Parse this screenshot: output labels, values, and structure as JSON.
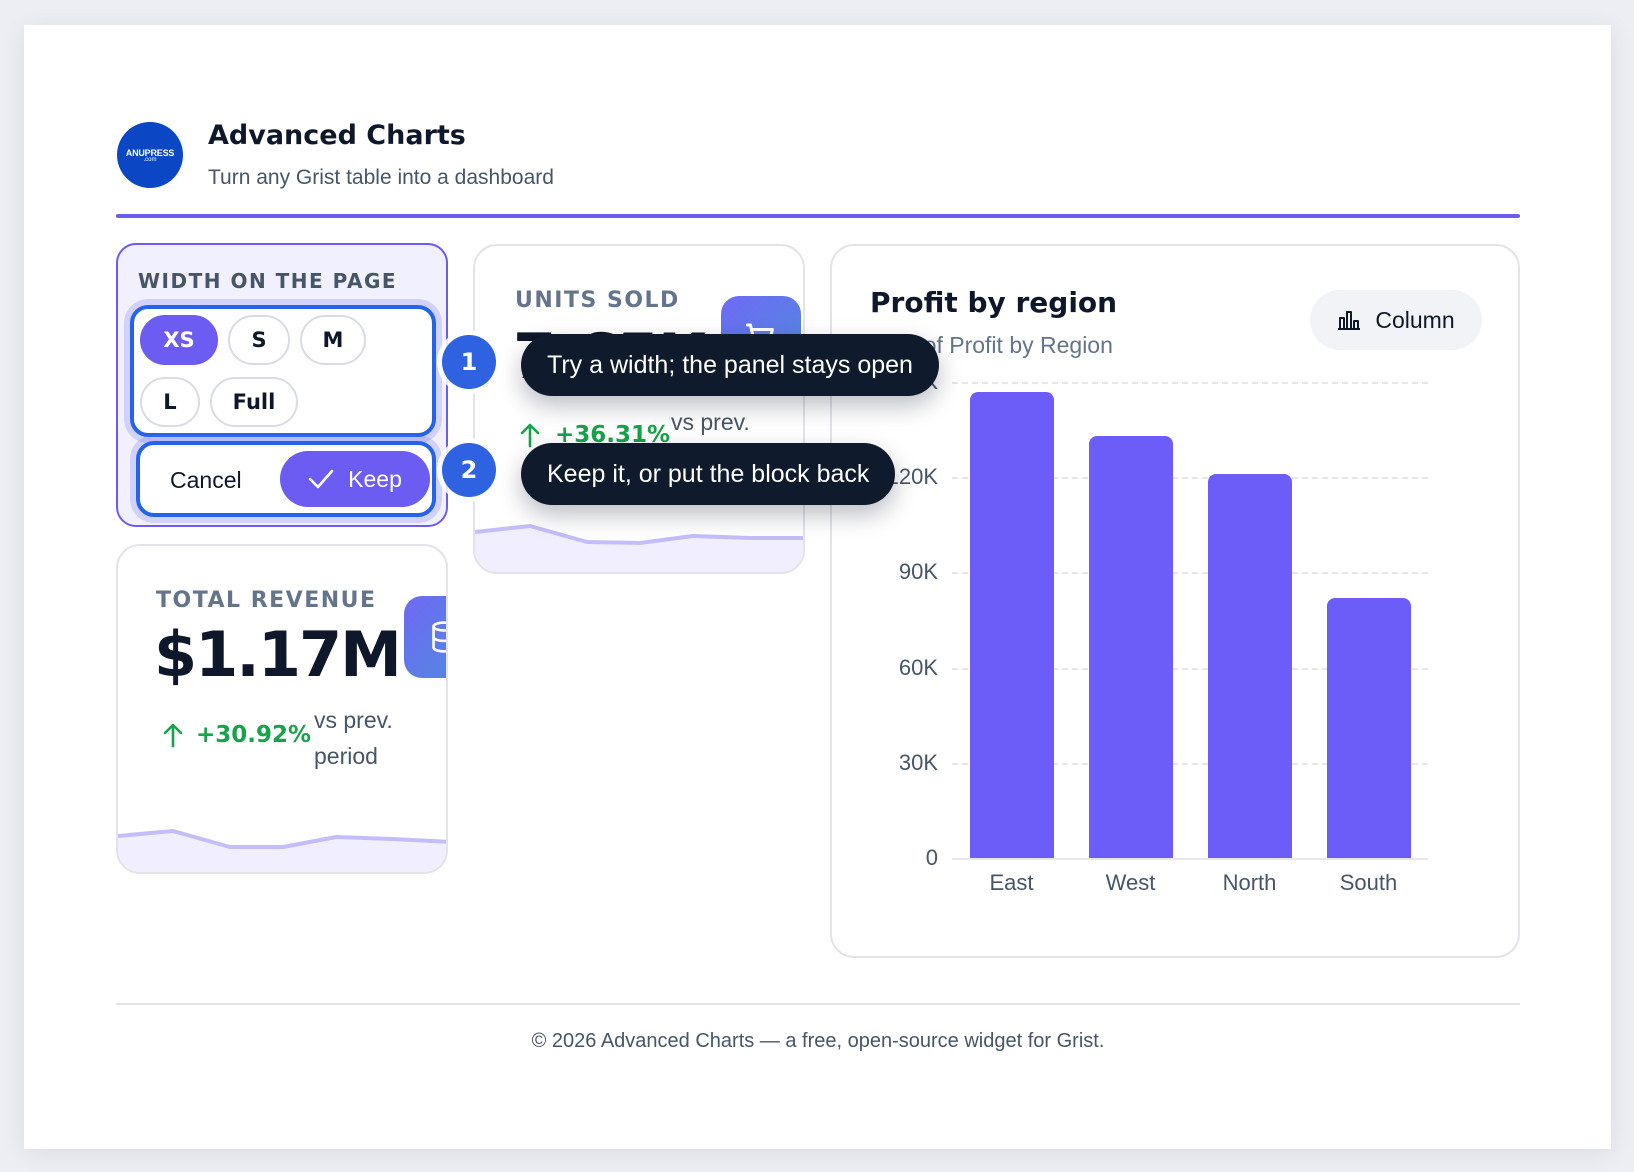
{
  "header": {
    "logo_text": "ANUPRESS",
    "logo_subtext": ".com",
    "title": "Advanced Charts",
    "subtitle": "Turn any Grist table into a dashboard"
  },
  "width_panel": {
    "label": "WIDTH ON THE PAGE",
    "sizes": [
      "XS",
      "S",
      "M",
      "L",
      "Full"
    ],
    "selected": "XS",
    "cancel_label": "Cancel",
    "keep_label": "Keep",
    "keep_icon": "check-icon"
  },
  "kpi_units": {
    "label": "UNITS SOLD",
    "value_partial": "7.65K",
    "delta": "+36.31%",
    "compare": "vs prev.",
    "icon": "cart-icon",
    "trend_direction": "up"
  },
  "kpi_revenue": {
    "label": "TOTAL REVENUE",
    "value": "$1.17M",
    "delta": "+30.92%",
    "compare_line1": "vs prev.",
    "compare_line2": "period",
    "icon": "database-icon",
    "trend_direction": "up"
  },
  "chart_card": {
    "title": "Profit by region",
    "subtitle": "Sum of Profit by Region",
    "type_button": "Column",
    "type_icon": "column-chart-icon"
  },
  "chart_data": {
    "type": "bar",
    "title": "Profit by region",
    "subtitle": "Sum of Profit by Region",
    "categories": [
      "East",
      "West",
      "North",
      "South"
    ],
    "values": [
      147000,
      133000,
      121000,
      82000
    ],
    "yticks": [
      "0",
      "30K",
      "60K",
      "90K",
      "120K",
      "150K"
    ],
    "ylim": [
      0,
      150000
    ],
    "xlabel": "",
    "ylabel": "",
    "grid": true,
    "color": "#6c5cf8"
  },
  "callouts": [
    {
      "number": "1",
      "text": "Try a width; the panel stays open"
    },
    {
      "number": "2",
      "text": "Keep it, or put the block back"
    }
  ],
  "footer": {
    "text": "© 2026 Advanced Charts — a free, open-source widget for Grist."
  },
  "colors": {
    "accent": "#6c5cf2",
    "focus_ring": "#2563eb",
    "positive": "#16a34a",
    "tooltip_bg": "#0f1b2d",
    "badge_bg": "#2f62e0"
  }
}
